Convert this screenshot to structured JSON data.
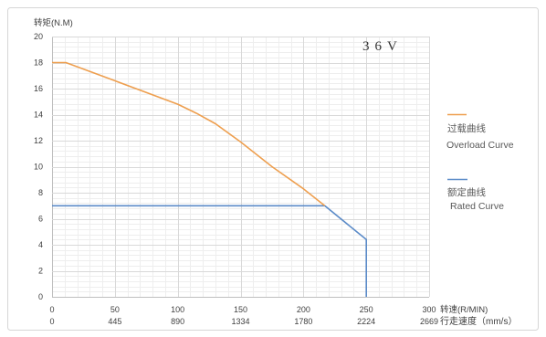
{
  "chart_data": {
    "type": "line",
    "annotation": "36V",
    "ylabel": "转矩(N.M)",
    "xlabel": "转速(R/MIN)",
    "x2label": "行走速度（mm/s）",
    "xlim": [
      0,
      300
    ],
    "ylim": [
      0,
      20
    ],
    "xticks": [
      0,
      50,
      100,
      150,
      200,
      250,
      300
    ],
    "x2ticks": [
      0,
      445,
      890,
      1334,
      1780,
      2224,
      2669
    ],
    "yticks": [
      0,
      2,
      4,
      6,
      8,
      10,
      12,
      14,
      16,
      18,
      20
    ],
    "grid": {
      "major": true,
      "minor": true
    },
    "legend_position": "right",
    "series": [
      {
        "name": "过载曲线",
        "name_en": "Overload Curve",
        "color": "#ee9f4f",
        "x": [
          0,
          11,
          50,
          100,
          115,
          130,
          150,
          175,
          200,
          217
        ],
        "y": [
          18,
          18,
          16.6,
          14.8,
          14.1,
          13.3,
          11.9,
          10.0,
          8.3,
          7
        ]
      },
      {
        "name": "额定曲线",
        "name_en": "Rated Curve",
        "color": "#5b8bc8",
        "x": [
          0,
          217,
          250,
          250
        ],
        "y": [
          7,
          7,
          4.4,
          0
        ]
      }
    ]
  }
}
